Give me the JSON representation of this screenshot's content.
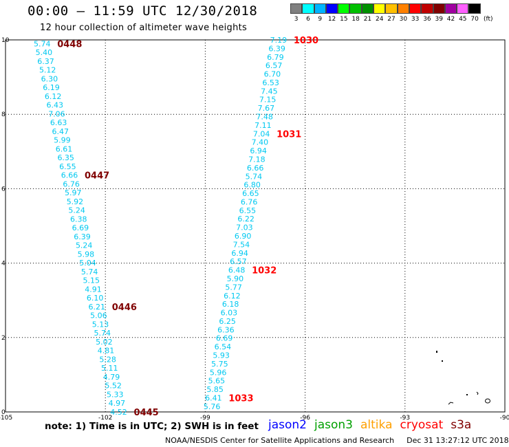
{
  "header": {
    "title": "00:00 – 11:59 UTC 12/30/2018",
    "subtitle": "12 hour collection of altimeter wave heights"
  },
  "colorbar": {
    "labels": [
      "3",
      "6",
      "9",
      "12",
      "15",
      "18",
      "21",
      "24",
      "27",
      "30",
      "33",
      "36",
      "39",
      "42",
      "45",
      "70"
    ],
    "colors": [
      "#808080",
      "#00ffff",
      "#00b4ff",
      "#0000ff",
      "#00ff00",
      "#00c000",
      "#009000",
      "#ffff00",
      "#ffc000",
      "#ff8000",
      "#ff0000",
      "#c00000",
      "#800000",
      "#a000a0",
      "#ff60ff",
      "#000000"
    ],
    "unit": "(ft)"
  },
  "axes": {
    "x_ticks": [
      "-105",
      "-102",
      "-99",
      "-96",
      "-93",
      "-90"
    ],
    "y_ticks": [
      "0",
      "2",
      "4",
      "6",
      "8",
      "10"
    ],
    "x_range": [
      -105,
      -90
    ],
    "y_range": [
      0,
      10
    ]
  },
  "colors": {
    "value_text": "#00c8f0",
    "jason2": "#0000ff",
    "jason3": "#00a000",
    "altika": "#ffa000",
    "cryosat": "#ff0000",
    "s3a": "#800000"
  },
  "tracks": [
    {
      "values": [
        "5.74",
        "5.40",
        "6.37",
        "5.12",
        "6.30",
        "6.19",
        "6.12",
        "6.43",
        "7.06",
        "6.63",
        "6.47",
        "5.99",
        "6.61",
        "6.35",
        "6.55",
        "6.66",
        "6.76",
        "5.97",
        "5.92",
        "5.24",
        "6.38",
        "6.69",
        "6.39",
        "5.24",
        "5.98",
        "5.04",
        "5.74",
        "5.15",
        "4.91",
        "6.10",
        "6.21",
        "5.06",
        "5.13",
        "5.74",
        "5.02",
        "4.81",
        "5.28",
        "5.11",
        "4.79",
        "5.52",
        "5.33",
        "4.97",
        "4.52"
      ],
      "lon_top": -103.9,
      "lat_top": 9.9,
      "lon_bottom": -101.6,
      "lat_bottom": 0.0,
      "labels": [
        {
          "text": "0448",
          "index": 0,
          "color": "#800000"
        },
        {
          "text": "0447",
          "index": 15,
          "color": "#800000"
        },
        {
          "text": "0446",
          "index": 30,
          "color": "#800000"
        },
        {
          "text": "0445",
          "index": 42,
          "color": "#800000"
        }
      ]
    },
    {
      "values": [
        "7.19",
        "6.39",
        "6.79",
        "6.57",
        "6.70",
        "6.53",
        "7.45",
        "7.15",
        "7.67",
        "7.48",
        "7.11",
        "7.04",
        "7.40",
        "6.94",
        "7.18",
        "6.66",
        "5.74",
        "6.80",
        "6.65",
        "6.76",
        "6.55",
        "6.22",
        "7.03",
        "6.90",
        "7.54",
        "6.94",
        "6.57",
        "6.48",
        "5.90",
        "5.77",
        "6.12",
        "6.18",
        "6.03",
        "6.25",
        "6.36",
        "6.69",
        "6.54",
        "5.93",
        "5.75",
        "5.96",
        "5.65",
        "5.85",
        "6.41",
        "5.76"
      ],
      "lon_top": -96.8,
      "lat_top": 10.0,
      "lon_bottom": -98.8,
      "lat_bottom": 0.15,
      "labels": [
        {
          "text": "1030",
          "index": 0,
          "color": "#ff0000"
        },
        {
          "text": "1031",
          "index": 11,
          "color": "#ff0000"
        },
        {
          "text": "1032",
          "index": 27,
          "color": "#ff0000"
        },
        {
          "text": "1033",
          "index": 42,
          "color": "#ff0000"
        }
      ]
    }
  ],
  "note": "note:  1) Time is in UTC;  2) SWH is in feet",
  "legend": [
    {
      "name": "jason2",
      "color": "#0000ff"
    },
    {
      "name": "jason3",
      "color": "#00a000"
    },
    {
      "name": "altika",
      "color": "#ffa000"
    },
    {
      "name": "cryosat",
      "color": "#ff0000"
    },
    {
      "name": "s3a",
      "color": "#800000"
    }
  ],
  "credit": {
    "left": "NOAA/NESDIS Center for Satellite Applications and Research",
    "right": "Dec 31 13:27:12 UTC 2018"
  }
}
